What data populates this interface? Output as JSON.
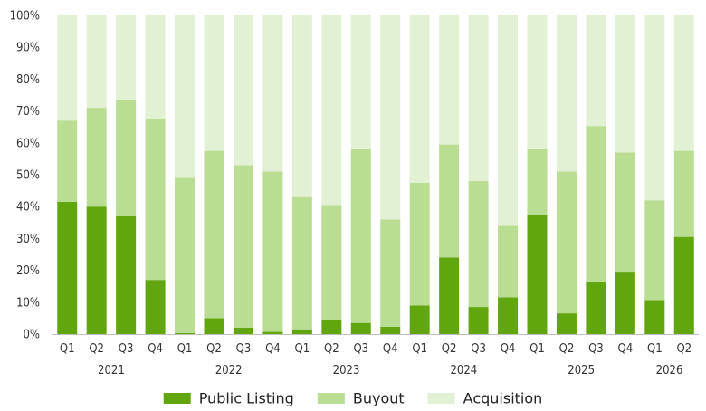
{
  "chart_data": {
    "type": "bar",
    "stacked": true,
    "y_axis": {
      "ylim": [
        0,
        100
      ],
      "ticks": [
        0,
        10,
        20,
        30,
        40,
        50,
        60,
        70,
        80,
        90,
        100
      ],
      "tick_labels": [
        "0%",
        "10%",
        "20%",
        "30%",
        "40%",
        "50%",
        "60%",
        "70%",
        "80%",
        "90%",
        "100%"
      ]
    },
    "categories": [
      "Q1",
      "Q2",
      "Q3",
      "Q4",
      "Q1",
      "Q2",
      "Q3",
      "Q4",
      "Q1",
      "Q2",
      "Q3",
      "Q4",
      "Q1",
      "Q2",
      "Q3",
      "Q4",
      "Q1",
      "Q2",
      "Q3",
      "Q4",
      "Q1",
      "Q2"
    ],
    "years": [
      {
        "label": "2021",
        "start": 0,
        "end": 3
      },
      {
        "label": "2022",
        "start": 4,
        "end": 7
      },
      {
        "label": "2023",
        "start": 8,
        "end": 11
      },
      {
        "label": "2024",
        "start": 12,
        "end": 15
      },
      {
        "label": "2025",
        "start": 16,
        "end": 19
      },
      {
        "label": "2026",
        "start": 20,
        "end": 21
      }
    ],
    "series": [
      {
        "name": "Public Listing",
        "color": "#61a60e",
        "values": [
          41.5,
          40,
          37,
          17,
          0.3,
          5,
          2,
          0.7,
          1.5,
          4.5,
          3.5,
          2.3,
          9,
          24,
          8.5,
          11.5,
          37.5,
          6.5,
          16.5,
          19.3,
          10.7,
          30.5
        ]
      },
      {
        "name": "Buyout",
        "color": "#b9de93",
        "values": [
          25.5,
          31,
          36.5,
          50.5,
          48.7,
          52.5,
          51,
          50.3,
          41.5,
          36,
          54.5,
          33.7,
          38.5,
          35.5,
          39.5,
          22.5,
          20.5,
          44.5,
          48.8,
          37.7,
          31.3,
          27
        ]
      },
      {
        "name": "Acquisition",
        "color": "#e2f0d3",
        "values": [
          33,
          29,
          26.5,
          32.5,
          51,
          42.5,
          47,
          49,
          57,
          59.5,
          42,
          64,
          52.5,
          40.5,
          52,
          66,
          42,
          49,
          34.7,
          43,
          58,
          42.5
        ]
      }
    ],
    "legend": {
      "position": "bottom"
    },
    "grid": false
  }
}
